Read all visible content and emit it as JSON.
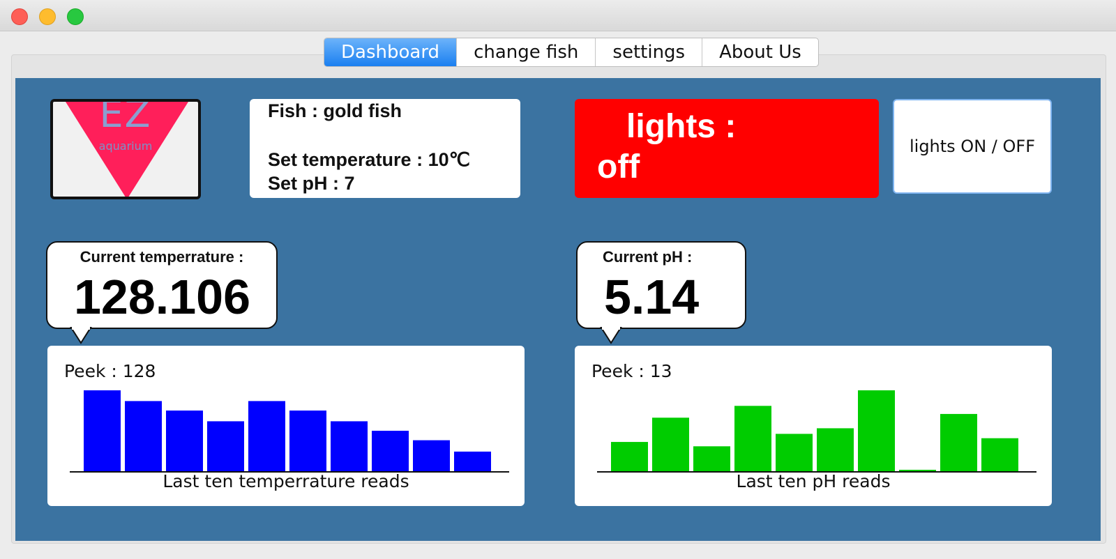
{
  "tabs": [
    "Dashboard",
    "change fish",
    "settings",
    "About Us"
  ],
  "active_tab": "Dashboard",
  "logo": {
    "text": "EZ",
    "subtext": "aquarium"
  },
  "fish_info": {
    "fish": "Fish : gold fish",
    "set_temperature": "Set temperature : 10℃",
    "set_ph": "Set pH : 7"
  },
  "lights": {
    "label": "lights :",
    "state": "off",
    "color": "#ff0000",
    "button": "lights ON / OFF"
  },
  "temperature": {
    "title": "Current temperrature :",
    "value": "128.106",
    "peek": "Peek : 128",
    "caption": "Last ten temperrature reads"
  },
  "ph": {
    "title": "Current pH :",
    "value": "5.14",
    "peek": "Peek : 13",
    "caption": "Last ten pH reads"
  },
  "chart_data": [
    {
      "type": "bar",
      "xlabel": "Last ten temperrature reads",
      "annotation": "Peek : 128",
      "color": "#0000ff",
      "ylim": [
        0,
        128
      ],
      "values": [
        128,
        111,
        96,
        79,
        111,
        96,
        79,
        64,
        49,
        31
      ]
    },
    {
      "type": "bar",
      "xlabel": "Last ten pH reads",
      "annotation": "Peek : 13",
      "color": "#00cc00",
      "ylim": [
        0,
        13
      ],
      "values": [
        4.7,
        8.6,
        4.0,
        10.5,
        6.0,
        6.9,
        13.0,
        0.2,
        9.2,
        5.3
      ]
    }
  ]
}
